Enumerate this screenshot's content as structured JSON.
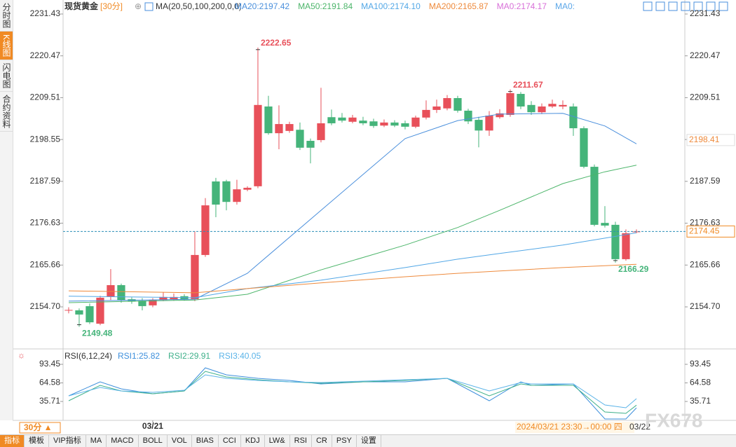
{
  "sidebar": {
    "items": [
      "分时图",
      "K线图",
      "闪电图",
      "合约资料"
    ],
    "active": 1
  },
  "header": {
    "symbol": "现货黄金",
    "period": "[30分]",
    "ma_params": "MA(20,50,100,200,0,0)",
    "extra": [
      {
        "text": "MA0:2174.17",
        "color": "#d86fd8"
      },
      {
        "text": "MA0:",
        "color": "#5aa6e8"
      }
    ]
  },
  "chart_data": [
    {
      "type": "candlestick",
      "up_color": "#e8505a",
      "down_color": "#45b47a",
      "open": [
        2153.8,
        2153.8,
        2154.88,
        2150.3,
        2157.46,
        2160.4,
        2156.7,
        2156.3,
        2155.1,
        2156.5,
        2156.7,
        2157.5,
        2156.7,
        2168.3,
        2187.56,
        2187.6,
        2182.2,
        2185.4,
        2186.3,
        2207.2,
        2200.2,
        2200.8,
        2201.1,
        2198.2,
        2198.4,
        2204.4,
        2204.3,
        2203.2,
        2203.5,
        2203.3,
        2202.2,
        2203.0,
        2202.8,
        2201.9,
        2204.3,
        2206.3,
        2206.7,
        2209.4,
        2206.1,
        2203.7,
        2200.9,
        2204.4,
        2205.0,
        2210.5,
        2207.6,
        2205.7,
        2207.2,
        2207.2,
        2207.2,
        2201.5,
        2191.4,
        2176.7,
        2176.2,
        2167.2,
        2174.3
      ],
      "high": [
        2154.6,
        2154.3,
        2155.6,
        2157.6,
        2164.6,
        2160.8,
        2157.2,
        2157.0,
        2157.0,
        2158.5,
        2158.2,
        2158.0,
        2174.5,
        2183.2,
        2188.5,
        2188.0,
        2188.0,
        2186.3,
        2222.65,
        2210.0,
        2207.5,
        2203.2,
        2203.0,
        2198.8,
        2212.1,
        2206.4,
        2205.5,
        2205.0,
        2204.5,
        2204.0,
        2203.8,
        2203.6,
        2203.5,
        2204.8,
        2208.8,
        2209.0,
        2210.2,
        2210.0,
        2206.6,
        2204.5,
        2206.0,
        2206.5,
        2211.67,
        2211.0,
        2208.6,
        2208.0,
        2209.0,
        2208.8,
        2208.0,
        2202.0,
        2192.0,
        2181.1,
        2177.0,
        2175.0,
        2175.0
      ],
      "low": [
        2153.0,
        2149.48,
        2150.2,
        2149.9,
        2156.5,
        2155.8,
        2155.5,
        2153.8,
        2154.6,
        2156.2,
        2156.3,
        2156.3,
        2156.2,
        2167.8,
        2178.2,
        2180.0,
        2181.5,
        2185.0,
        2185.8,
        2199.8,
        2196.0,
        2200.3,
        2195.8,
        2192.3,
        2197.8,
        2202.3,
        2203.0,
        2202.8,
        2202.3,
        2201.6,
        2201.8,
        2201.8,
        2201.2,
        2201.5,
        2203.8,
        2205.5,
        2206.2,
        2205.6,
        2202.6,
        2196.5,
        2199.5,
        2204.0,
        2204.5,
        2206.5,
        2205.0,
        2205.2,
        2206.8,
        2206.5,
        2199.5,
        2191.0,
        2175.8,
        2175.5,
        2166.29,
        2166.8,
        2174.0
      ],
      "close": [
        2153.9,
        2152.7,
        2150.66,
        2157.1,
        2160.4,
        2156.5,
        2156.2,
        2154.9,
        2156.5,
        2157.3,
        2157.3,
        2156.7,
        2168.3,
        2181.3,
        2181.5,
        2182.2,
        2185.5,
        2185.9,
        2207.6,
        2200.2,
        2202.6,
        2202.6,
        2196.4,
        2196.4,
        2202.8,
        2202.8,
        2203.5,
        2204.3,
        2202.8,
        2202.1,
        2203.0,
        2202.2,
        2201.9,
        2204.3,
        2206.3,
        2207.2,
        2209.4,
        2206.1,
        2203.3,
        2200.9,
        2204.8,
        2205.4,
        2210.7,
        2207.2,
        2205.7,
        2207.2,
        2207.9,
        2207.6,
        2201.5,
        2191.4,
        2176.2,
        2176.0,
        2167.2,
        2174.0,
        2174.45
      ],
      "xlim": [
        -0.53,
        54.67
      ],
      "ylim": [
        2144.24,
        2233.63
      ],
      "yticks": [
        {
          "value": 2154.7,
          "label": "2154.70"
        },
        2165.66,
        2176.63,
        2187.59,
        2198.55,
        2209.51,
        2220.47,
        2231.43
      ],
      "xticks": [
        {
          "value": 8,
          "label": "03/21"
        }
      ],
      "series": [
        {
          "label": "MA20:2197.42",
          "color": "#4a8fdc",
          "x": [
            0,
            12,
            17,
            24,
            32,
            37,
            41,
            47,
            51,
            54
          ],
          "values": [
            2156.2,
            2156.7,
            2163.5,
            2180.0,
            2198.8,
            2203.5,
            2205.2,
            2205.4,
            2202.1,
            2197.42
          ]
        },
        {
          "label": "MA50:2191.84",
          "color": "#4cb56a",
          "x": [
            0,
            12,
            17,
            24,
            32,
            37,
            41,
            47,
            51,
            54
          ],
          "values": [
            2155.8,
            2156.5,
            2158.0,
            2164.4,
            2170.9,
            2175.5,
            2180.0,
            2187.0,
            2190.1,
            2191.84
          ]
        },
        {
          "label": "MA100:2174.10",
          "color": "#52a7e6",
          "x": [
            0,
            12,
            17,
            24,
            32,
            37,
            41,
            47,
            51,
            54
          ],
          "values": [
            2157.5,
            2157.1,
            2159.5,
            2161.7,
            2165.0,
            2167.2,
            2168.7,
            2170.9,
            2172.7,
            2174.1
          ]
        },
        {
          "label": "MA200:2165.87",
          "color": "#ee8a3c",
          "x": [
            0,
            12,
            17,
            24,
            32,
            37,
            41,
            47,
            51,
            54
          ],
          "values": [
            2158.9,
            2158.4,
            2159.5,
            2161.0,
            2162.6,
            2163.5,
            2164.1,
            2165.0,
            2165.5,
            2165.87
          ]
        }
      ],
      "annotations": [
        {
          "index": 18,
          "value": 2222.65,
          "kind": "high"
        },
        {
          "index": 42,
          "value": 2211.67,
          "kind": "high"
        },
        {
          "index": 1,
          "value": 2149.48,
          "kind": "low"
        },
        {
          "index": 52,
          "value": 2166.29,
          "kind": "low"
        }
      ],
      "last_price": 2174.45,
      "ref_price": 2198.41
    },
    {
      "type": "line",
      "title": "RSI(6,12,24)",
      "xlim": [
        -0.53,
        54.67
      ],
      "ylim": [
        6.3,
        109.79
      ],
      "yticks": [
        35.71,
        64.58,
        93.45
      ],
      "series": [
        {
          "label": "RSI1:25.82",
          "color": "#3d8fdc",
          "x": [
            0,
            3,
            5,
            8,
            11,
            13,
            15,
            18,
            21,
            24,
            28,
            32,
            36,
            40,
            43,
            44,
            48,
            51,
            53,
            54
          ],
          "values": [
            44.4,
            66.2,
            55.3,
            47.7,
            52.0,
            88.0,
            77.1,
            71.7,
            68.4,
            62.9,
            66.2,
            66.2,
            71.7,
            36.8,
            66.2,
            60.8,
            62.9,
            8.5,
            8.5,
            25.82
          ]
        },
        {
          "label": "RSI2:29.91",
          "color": "#3fb08a",
          "x": [
            0,
            3,
            5,
            8,
            11,
            13,
            15,
            18,
            21,
            24,
            28,
            32,
            36,
            40,
            43,
            44,
            48,
            51,
            53,
            54
          ],
          "values": [
            36.8,
            60.8,
            52.0,
            47.7,
            52.0,
            82.6,
            73.8,
            69.5,
            66.2,
            64.0,
            66.2,
            68.4,
            71.7,
            44.4,
            62.9,
            60.8,
            60.8,
            19.4,
            17.2,
            29.91
          ]
        },
        {
          "label": "RSI3:40.05",
          "color": "#5ab3e8",
          "x": [
            0,
            3,
            5,
            8,
            11,
            13,
            15,
            18,
            21,
            24,
            28,
            32,
            36,
            40,
            43,
            44,
            48,
            51,
            53,
            54
          ],
          "values": [
            44.4,
            57.5,
            52.0,
            49.9,
            53.1,
            77.1,
            71.7,
            68.4,
            66.2,
            65.1,
            67.3,
            69.5,
            71.7,
            52.0,
            65.1,
            62.9,
            62.9,
            30.3,
            25.9,
            40.05
          ]
        }
      ]
    }
  ],
  "toolbar": {
    "period": "30分 ▲",
    "cursor_time": "2024/03/21 23:30→00:00 四",
    "cursor_date": "03/22",
    "tabs": [
      "指标",
      "模板",
      "VIP指标",
      "MA",
      "MACD",
      "BOLL",
      "VOL",
      "BIAS",
      "CCI",
      "KDJ",
      "LW&",
      "RSI",
      "CR",
      "PSY",
      "设置"
    ],
    "active": 0
  },
  "watermark": "FX678"
}
